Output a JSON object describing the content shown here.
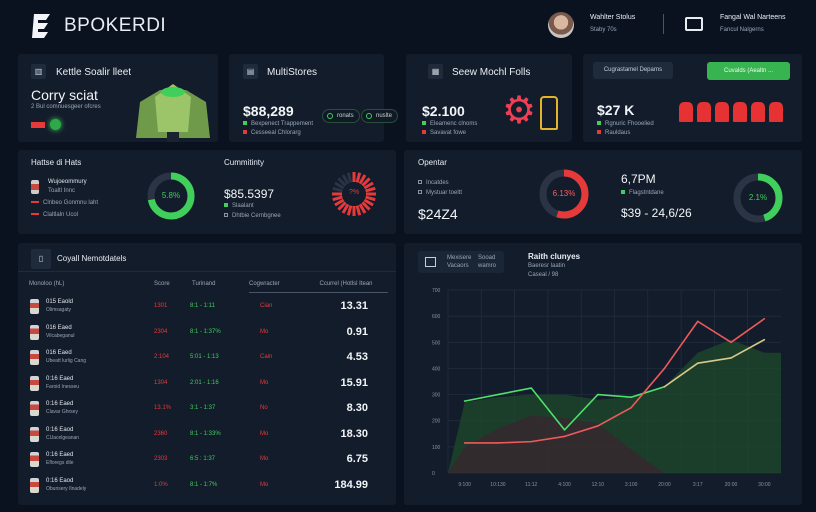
{
  "header": {
    "brand": "BPOKERDI",
    "user_name": "Wahlter Stolus",
    "user_sub": "Staby 70s",
    "account_title": "Fangal Wal Narteens",
    "account_sub": "Fancul Nalgerns"
  },
  "cards": [
    {
      "title": "Kettle Soalir lleet",
      "headline": "Corry sciat",
      "sub": "2 Bul comnuesgeer ofcres"
    },
    {
      "title": "MultiStores",
      "value": "$88,289",
      "legend": [
        "Bexpenect Trappement",
        "Cesseeal Chlorarg"
      ],
      "pills": [
        "ronats",
        "nuslte"
      ]
    },
    {
      "title": "Seew Mochl Folls",
      "value": "$2.100",
      "legend": [
        "Eleamenc clnoms",
        "Savavat fowe"
      ]
    },
    {
      "button_secondary": "Cugrastamel Deparns",
      "button_primary": "Cuvalds (Aealtn ...",
      "value": "$27 K",
      "legend": [
        "Rgnuric Fhooelied",
        "Rauldaus"
      ]
    }
  ],
  "metrics_left": {
    "title": "Hattse di Hats",
    "item": "Wujoeommury",
    "item_sub": "Toaltl Innc",
    "legend": [
      "Clnbeo Gonmnu laht",
      "Claltlaln Ucol"
    ],
    "donut_label": "5.8%",
    "donut_value": 0.72,
    "community_title": "Cummitinty",
    "community_value": "$85.5397",
    "community_legend": [
      "Slaalant",
      "Dhtbie Cernbgnee"
    ],
    "segment_label": "?%"
  },
  "metrics_right": {
    "title": "Opentar",
    "legend": [
      "Incatdes",
      "Mystuar toeltt"
    ],
    "value": "$24Z4",
    "donut1_label": "6.13%",
    "donut1_value": 0.55,
    "value2": "6,7PM",
    "value2_legend": "Flagstntdane",
    "range": "$39 - 24,6/26",
    "donut2_label": "2.1%",
    "donut2_value": 0.45
  },
  "table": {
    "title": "Coyall Nemotdatels",
    "columns": [
      "Monoloo (hL)",
      "Score",
      "Turinand",
      "Cogwracter",
      "Ccurrel (Hotlsl Itean"
    ],
    "rows": [
      {
        "name": "015 Eaold",
        "sub": "Olimsagaty",
        "score": "1301",
        "range": "8:1 - 1:11",
        "tag": "Cian",
        "value": "13.31"
      },
      {
        "name": "016 Eaed",
        "sub": "Vilcabeganul",
        "score": "2304",
        "range": "8:1 - 1:37%",
        "tag": "Mo",
        "value": "0.91"
      },
      {
        "name": "016 Eaed",
        "sub": "Ubeatt lurlig Cang",
        "score": "2:104",
        "range": "5:01 - 1:13",
        "tag": "Cain",
        "value": "4.53"
      },
      {
        "name": "0:16 Eaed",
        "sub": "Faroid Inesseu",
        "score": "1304",
        "range": "2:01 - 1:16",
        "tag": "Mo",
        "value": "15.91"
      },
      {
        "name": "0:16 Eaed",
        "sub": "Clavar Ghrsey",
        "score": "13.1%",
        "range": "3:1 - 1:37",
        "tag": "No",
        "value": "8.30"
      },
      {
        "name": "0:16 Eaod",
        "sub": "CUacelgeanan",
        "score": "2360",
        "range": "8:1 - 1:33%",
        "tag": "Mo",
        "value": "18.30"
      },
      {
        "name": "0:16 Eaed",
        "sub": "Efloregs dile",
        "score": "2303",
        "range": "6:5 : 1:37",
        "tag": "Mo",
        "value": "6.75"
      },
      {
        "name": "0:16 Eaod",
        "sub": "Obunsery Ilnadely",
        "score": "1:0%",
        "range": "8:1 - 1:7%",
        "tag": "Mo",
        "value": "184.99"
      }
    ]
  },
  "chart_panel": {
    "tab_a": "Mexisere",
    "tab_a_sub": "Vacaors",
    "tab_b": "Sooad",
    "tab_b_sub": "wamro"
  },
  "chart_data": {
    "type": "line",
    "title": "Raith clunyes",
    "subtitle": "Baeresr laatin",
    "subtitle2": "Caseal / 98",
    "categories": [
      "9:100",
      "10:130",
      "11:12",
      "4:100",
      "12:10",
      "3:100",
      "20:00",
      "3:17",
      "20:00",
      "30:00"
    ],
    "yticks": [
      "0",
      "100",
      "200",
      "300",
      "400",
      "500",
      "600",
      "700"
    ],
    "ylim": [
      0,
      700
    ],
    "grid": true,
    "series": [
      {
        "color": "#4ee06a",
        "values": [
          275,
          300,
          325,
          165,
          300,
          290,
          330,
          null,
          null,
          null
        ]
      },
      {
        "color": "#d8c98a",
        "values": [
          null,
          null,
          null,
          null,
          null,
          null,
          330,
          420,
          440,
          510
        ]
      },
      {
        "color": "#ee5a5a",
        "values": [
          115,
          115,
          120,
          140,
          180,
          250,
          400,
          580,
          500,
          590
        ]
      }
    ],
    "areas": [
      {
        "color": "#1f4a2c",
        "values": [
          270,
          290,
          300,
          300,
          280,
          290,
          330,
          460,
          510,
          460
        ]
      },
      {
        "color": "#3a2630",
        "values": [
          100,
          170,
          220,
          210,
          190,
          90,
          0,
          0,
          0,
          0
        ]
      }
    ]
  },
  "colors": {
    "accent_green": "#3fcf5a",
    "accent_red": "#e63a3a",
    "card": "#131c2b",
    "bg": "#0a1220"
  }
}
